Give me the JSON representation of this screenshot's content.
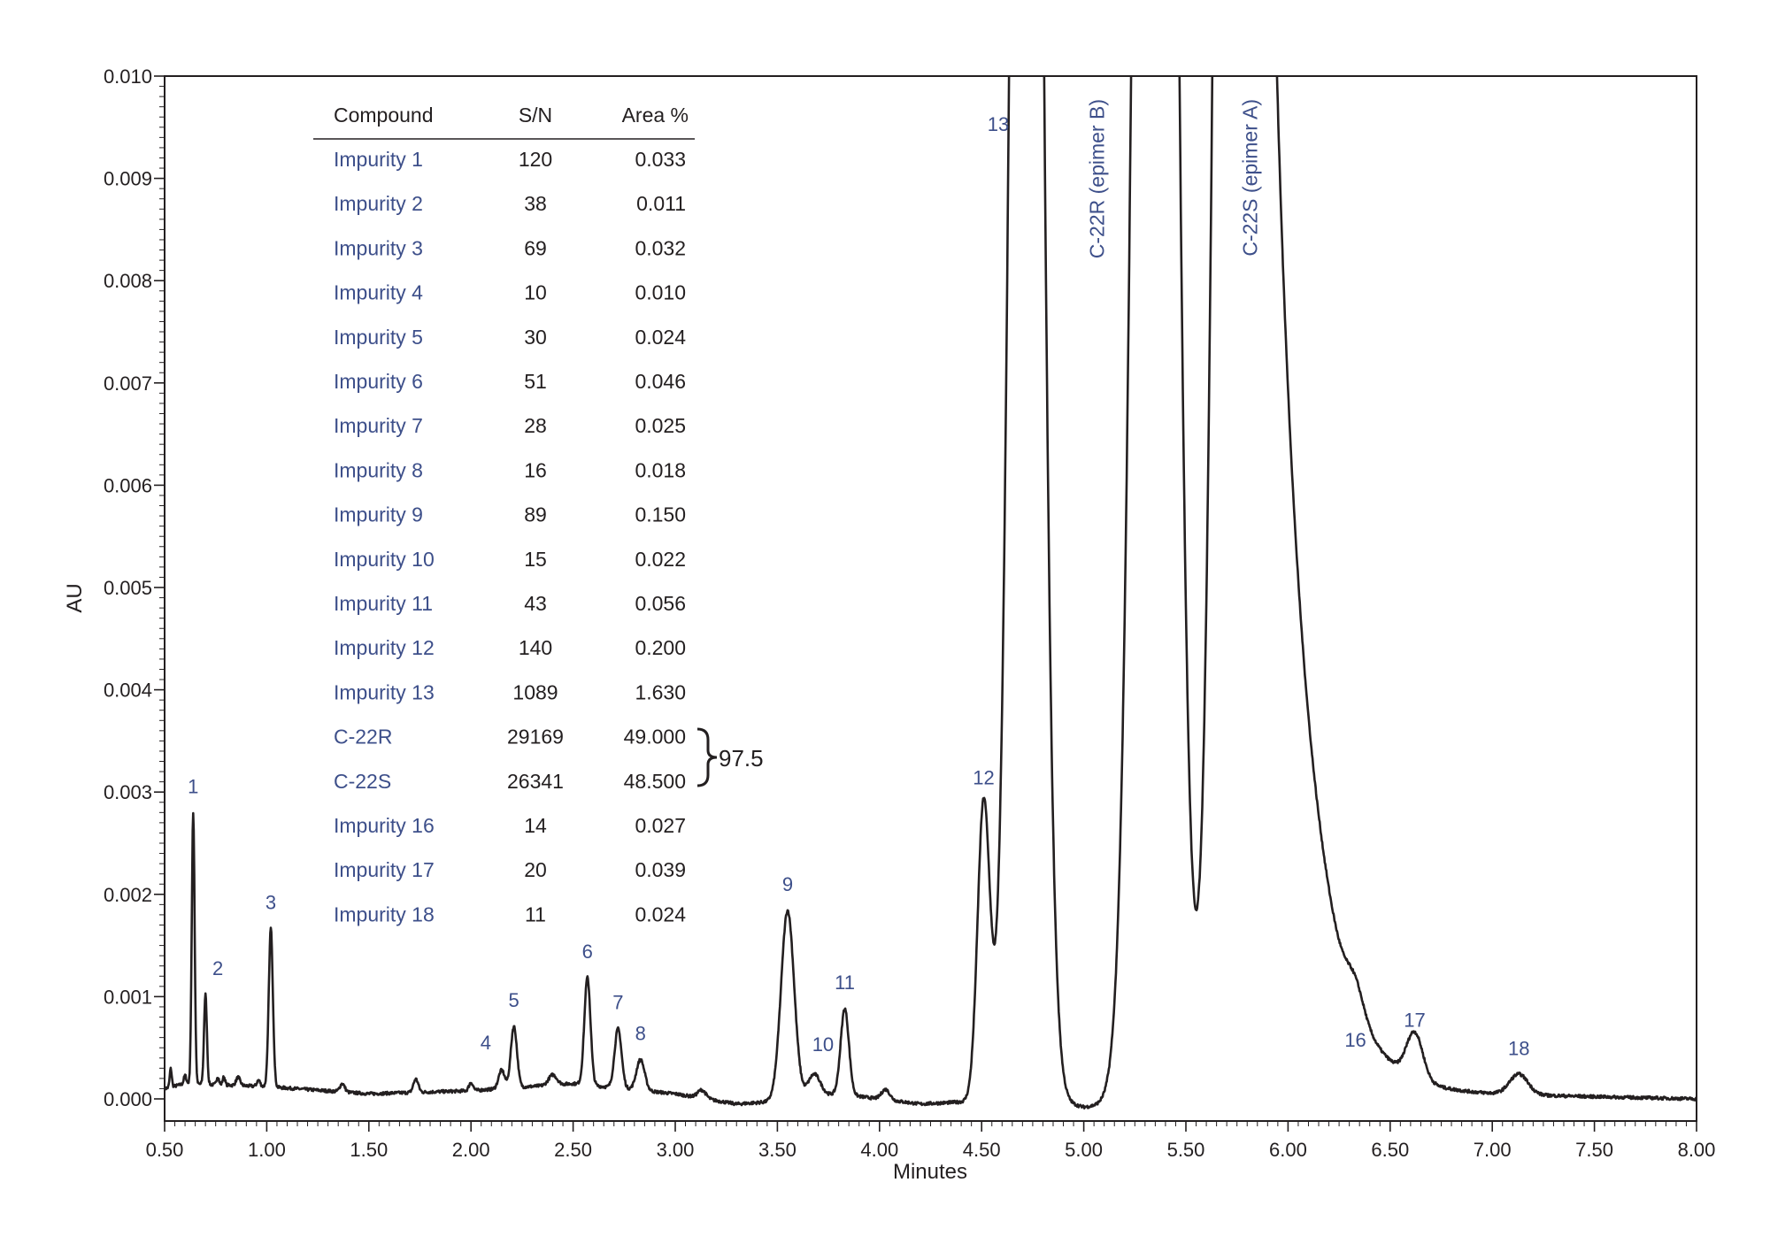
{
  "chart_data": {
    "type": "line",
    "xlabel": "Minutes",
    "ylabel": "AU",
    "xlim": [
      0.5,
      8.0
    ],
    "ylim": [
      0.0,
      0.01
    ],
    "x_ticks": [
      "0.50",
      "1.00",
      "1.50",
      "2.00",
      "2.50",
      "3.00",
      "3.50",
      "4.00",
      "4.50",
      "5.00",
      "5.50",
      "6.00",
      "6.50",
      "7.00",
      "7.50",
      "8.00"
    ],
    "y_ticks": [
      "0.000",
      "0.001",
      "0.002",
      "0.003",
      "0.004",
      "0.005",
      "0.006",
      "0.007",
      "0.008",
      "0.009",
      "0.010"
    ],
    "grid": false,
    "line_color": "#231f20",
    "label_color": "#3d4f8a",
    "baseline": [
      {
        "x": 0.5,
        "y": 0.0001
      },
      {
        "x": 0.6,
        "y": 0.00015
      },
      {
        "x": 1.0,
        "y": 0.00012
      },
      {
        "x": 1.5,
        "y": 5e-05
      },
      {
        "x": 2.0,
        "y": 8e-05
      },
      {
        "x": 2.5,
        "y": 0.00015
      },
      {
        "x": 3.0,
        "y": 5e-05
      },
      {
        "x": 3.3,
        "y": -5e-05
      },
      {
        "x": 3.45,
        "y": -3e-05
      },
      {
        "x": 3.8,
        "y": 5e-05
      },
      {
        "x": 4.2,
        "y": -5e-05
      },
      {
        "x": 4.4,
        "y": -3e-05
      },
      {
        "x": 4.6,
        "y": 0.0
      },
      {
        "x": 4.8,
        "y": 0.0
      },
      {
        "x": 5.0,
        "y": -8e-05
      },
      {
        "x": 5.2,
        "y": -5e-05
      },
      {
        "x": 5.9,
        "y": 0.0
      },
      {
        "x": 6.4,
        "y": 8e-05
      },
      {
        "x": 6.8,
        "y": 5e-05
      },
      {
        "x": 7.3,
        "y": 3e-05
      },
      {
        "x": 8.0,
        "y": 0.0
      }
    ],
    "peaks": [
      {
        "label": "1",
        "rt": 0.64,
        "height": 0.00265,
        "width": 0.007
      },
      {
        "label": "2",
        "rt": 0.7,
        "height": 0.00088,
        "width": 0.007
      },
      {
        "label": "3",
        "rt": 1.02,
        "height": 0.00155,
        "width": 0.01
      },
      {
        "label": "4",
        "rt": 2.15,
        "height": 0.00018,
        "width": 0.015
      },
      {
        "label": "5",
        "rt": 2.21,
        "height": 0.0006,
        "width": 0.015
      },
      {
        "label": "6",
        "rt": 2.57,
        "height": 0.00105,
        "width": 0.015
      },
      {
        "label": "7",
        "rt": 2.72,
        "height": 0.00058,
        "width": 0.017
      },
      {
        "label": "8",
        "rt": 2.83,
        "height": 0.0003,
        "width": 0.02
      },
      {
        "label": "9",
        "rt": 3.55,
        "height": 0.00185,
        "width": 0.032
      },
      {
        "label": "10",
        "rt": 3.68,
        "height": 0.00022,
        "width": 0.03
      },
      {
        "label": "11",
        "rt": 3.83,
        "height": 0.00084,
        "width": 0.02
      },
      {
        "label": "12",
        "rt": 4.51,
        "height": 0.0029,
        "width": 0.03
      },
      {
        "label": "13",
        "rt": 4.72,
        "height": 0.028,
        "width": 0.06
      },
      {
        "label": "C-22R (epimer B)",
        "rt": 5.35,
        "height": 0.035,
        "width": 0.075
      },
      {
        "label": "C-22S (epimer A)",
        "rt": 5.74,
        "height": 0.035,
        "width": 0.07,
        "tail": 0.16
      },
      {
        "label": "16",
        "rt": 6.33,
        "height": 0.00025,
        "width": 0.04
      },
      {
        "label": "17",
        "rt": 6.62,
        "height": 0.00045,
        "width": 0.04
      },
      {
        "label": "18",
        "rt": 7.13,
        "height": 0.0002,
        "width": 0.045
      }
    ],
    "minor_peaks": [
      {
        "rt": 0.53,
        "height": 0.00018,
        "width": 0.005
      },
      {
        "rt": 0.6,
        "height": 8e-05,
        "width": 0.006
      },
      {
        "rt": 0.76,
        "height": 8e-05,
        "width": 0.006
      },
      {
        "rt": 0.79,
        "height": 8e-05,
        "width": 0.006
      },
      {
        "rt": 0.86,
        "height": 8e-05,
        "width": 0.01
      },
      {
        "rt": 0.96,
        "height": 6e-05,
        "width": 0.008
      },
      {
        "rt": 1.37,
        "height": 8e-05,
        "width": 0.012
      },
      {
        "rt": 1.73,
        "height": 0.00013,
        "width": 0.012
      },
      {
        "rt": 2.0,
        "height": 8e-05,
        "width": 0.01
      },
      {
        "rt": 2.4,
        "height": 0.0001,
        "width": 0.02
      },
      {
        "rt": 3.13,
        "height": 8e-05,
        "width": 0.02
      },
      {
        "rt": 4.03,
        "height": 0.0001,
        "width": 0.02
      },
      {
        "rt": 6.17,
        "height": 4e-05,
        "width": 0.06
      }
    ],
    "table": {
      "columns": [
        "Compound",
        "S/N",
        "Area %"
      ],
      "rows": [
        [
          "Impurity 1",
          "120",
          "0.033"
        ],
        [
          "Impurity 2",
          "38",
          "0.011"
        ],
        [
          "Impurity 3",
          "69",
          "0.032"
        ],
        [
          "Impurity 4",
          "10",
          "0.010"
        ],
        [
          "Impurity 5",
          "30",
          "0.024"
        ],
        [
          "Impurity 6",
          "51",
          "0.046"
        ],
        [
          "Impurity 7",
          "28",
          "0.025"
        ],
        [
          "Impurity 8",
          "16",
          "0.018"
        ],
        [
          "Impurity 9",
          "89",
          "0.150"
        ],
        [
          "Impurity 10",
          "15",
          "0.022"
        ],
        [
          "Impurity 11",
          "43",
          "0.056"
        ],
        [
          "Impurity 12",
          "140",
          "0.200"
        ],
        [
          "Impurity 13",
          "1089",
          "1.630"
        ],
        [
          "C-22R",
          "29169",
          "49.000"
        ],
        [
          "C-22S",
          "26341",
          "48.500"
        ],
        [
          "Impurity 16",
          "14",
          "0.027"
        ],
        [
          "Impurity 17",
          "20",
          "0.039"
        ],
        [
          "Impurity 18",
          "11",
          "0.024"
        ]
      ],
      "brace_total": "97.5"
    }
  }
}
